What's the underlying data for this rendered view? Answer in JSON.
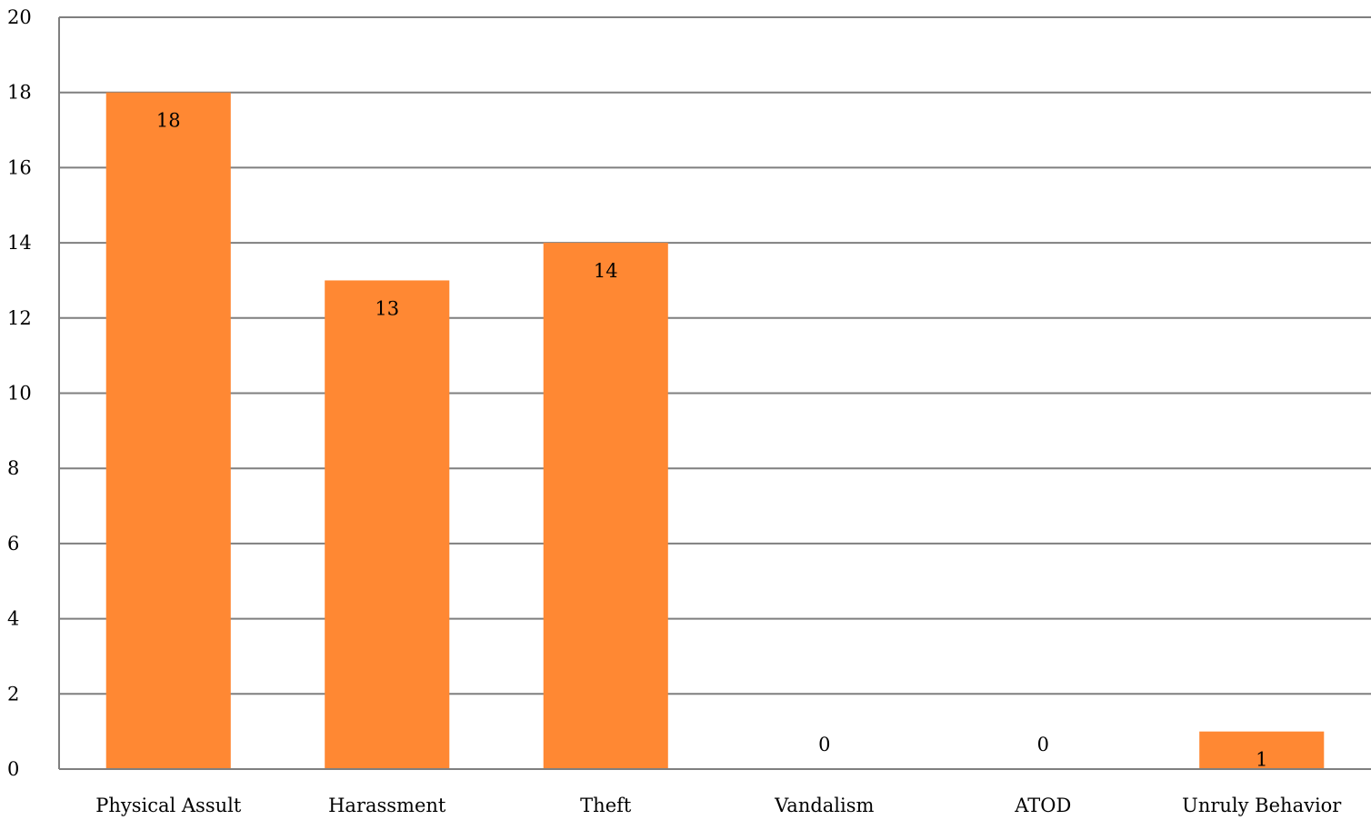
{
  "chart_data": {
    "type": "bar",
    "categories": [
      "Physical Assult",
      "Harassment",
      "Theft",
      "Vandalism",
      "ATOD",
      "Unruly Behavior"
    ],
    "values": [
      18,
      13,
      14,
      0,
      0,
      1
    ],
    "data_labels": [
      "18",
      "13",
      "14",
      "0",
      "0",
      "1"
    ],
    "title": "",
    "xlabel": "",
    "ylabel": "",
    "ylim": [
      0,
      20
    ],
    "yticks": [
      0,
      2,
      4,
      6,
      8,
      10,
      12,
      14,
      16,
      18,
      20
    ],
    "grid": true,
    "legend": "none",
    "bar_color": "#FF8833",
    "grid_color": "#7f7f7f"
  }
}
